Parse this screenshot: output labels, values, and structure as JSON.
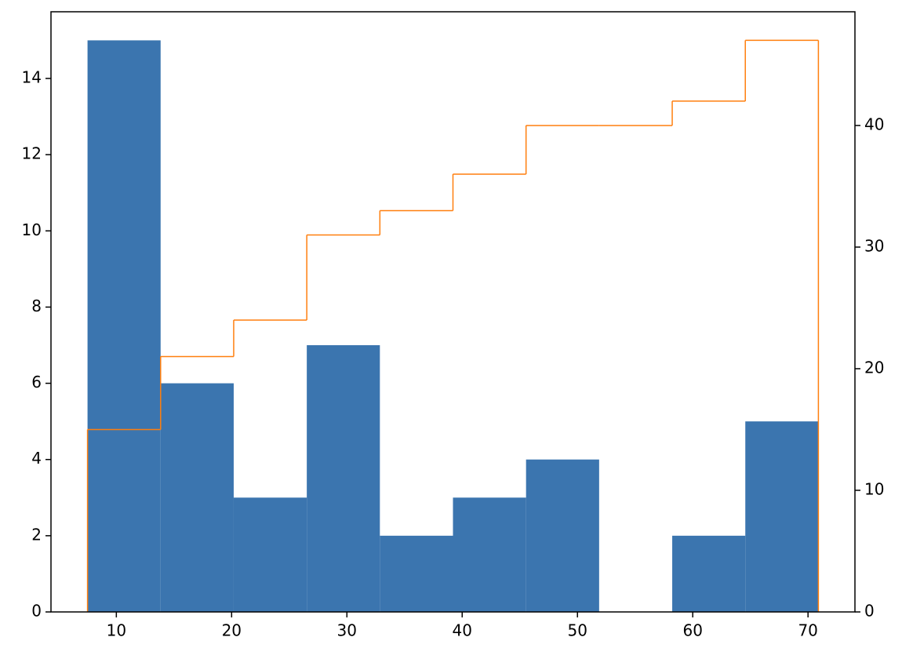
{
  "chart_data": {
    "type": "histogram",
    "bins": [
      7.5,
      13.84,
      20.18,
      26.52,
      32.86,
      39.2,
      45.54,
      51.88,
      58.22,
      64.56,
      70.9
    ],
    "values": [
      15,
      6,
      3,
      7,
      2,
      3,
      4,
      0,
      2,
      5
    ],
    "color": "#3b75af",
    "cumulative": {
      "type": "step",
      "axis": "y2",
      "color": "#ff7f0e",
      "values": [
        15,
        21,
        24,
        31,
        33,
        36,
        40,
        40,
        42,
        47
      ]
    },
    "xlim": [
      4.33,
      74.07
    ],
    "xticks": [
      10,
      20,
      30,
      40,
      50,
      60,
      70
    ],
    "ylim": [
      0,
      15.75
    ],
    "yticks": [
      0,
      2,
      4,
      6,
      8,
      10,
      12,
      14
    ],
    "y2lim": [
      0,
      49.35
    ],
    "y2ticks": [
      0,
      10,
      20,
      30,
      40
    ]
  }
}
